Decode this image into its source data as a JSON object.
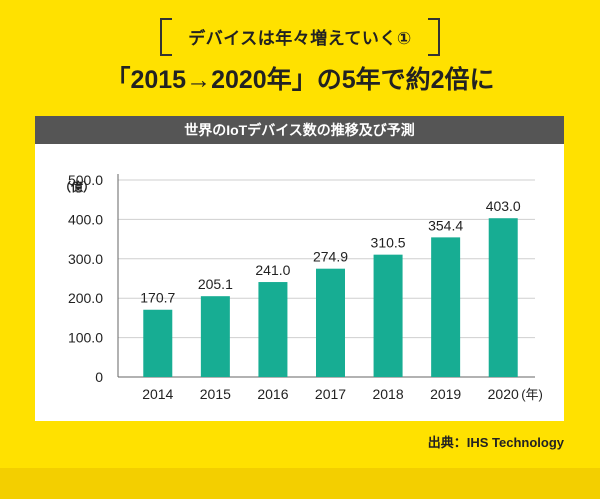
{
  "header": {
    "label": "デバイスは年々増えていく①",
    "headline": "「2015→2020年」の5年で約2倍に"
  },
  "chart_title": "世界のIoTデバイス数の推移及び予測",
  "source": "出典：IHS Technology",
  "colors": {
    "background": "#ffe100",
    "bar": "#17ad93",
    "title_bar": "#555555"
  },
  "chart_data": {
    "type": "bar",
    "title": "世界のIoTデバイス数の推移及び予測",
    "ylabel": "（億）",
    "xunit": "(年)",
    "categories": [
      "2014",
      "2015",
      "2016",
      "2017",
      "2018",
      "2019",
      "2020"
    ],
    "values": [
      170.7,
      205.1,
      241.0,
      274.9,
      310.5,
      354.4,
      403.0
    ],
    "value_labels": [
      "170.7",
      "205.1",
      "241.0",
      "274.9",
      "310.5",
      "354.4",
      "403.0"
    ],
    "ylim": [
      0,
      500
    ],
    "yticks": [
      "0",
      "100.0",
      "200.0",
      "300.0",
      "400.0",
      "500.0"
    ],
    "grid": true
  }
}
